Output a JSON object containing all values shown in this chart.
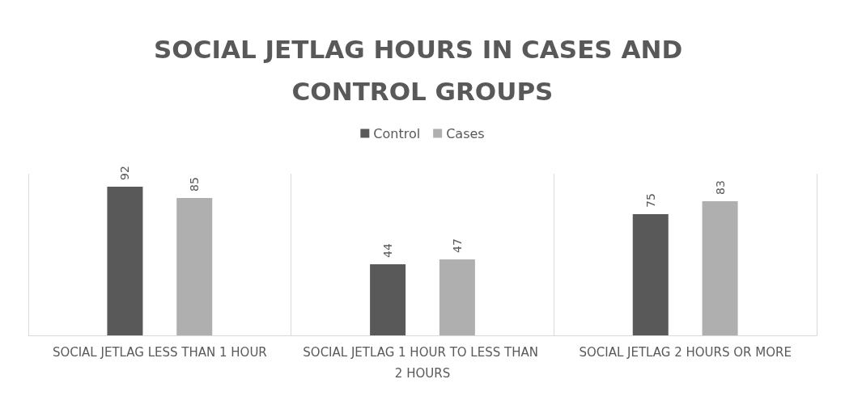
{
  "chart_data": {
    "type": "bar",
    "title": "SOCIAL JETLAG HOURS IN CASES AND CONTROL GROUPS",
    "categories": [
      "SOCIAL JETLAG LESS THAN 1 HOUR",
      "SOCIAL JETLAG 1 HOUR TO LESS THAN 2 HOURS",
      "SOCIAL JETLAG 2 HOURS OR MORE"
    ],
    "series": [
      {
        "name": "Control",
        "color": "#595959",
        "values": [
          92,
          44,
          75
        ]
      },
      {
        "name": "Cases",
        "color": "#afafaf",
        "values": [
          85,
          47,
          83
        ]
      }
    ],
    "data_labels": true,
    "grid": "x",
    "legend": "top"
  }
}
